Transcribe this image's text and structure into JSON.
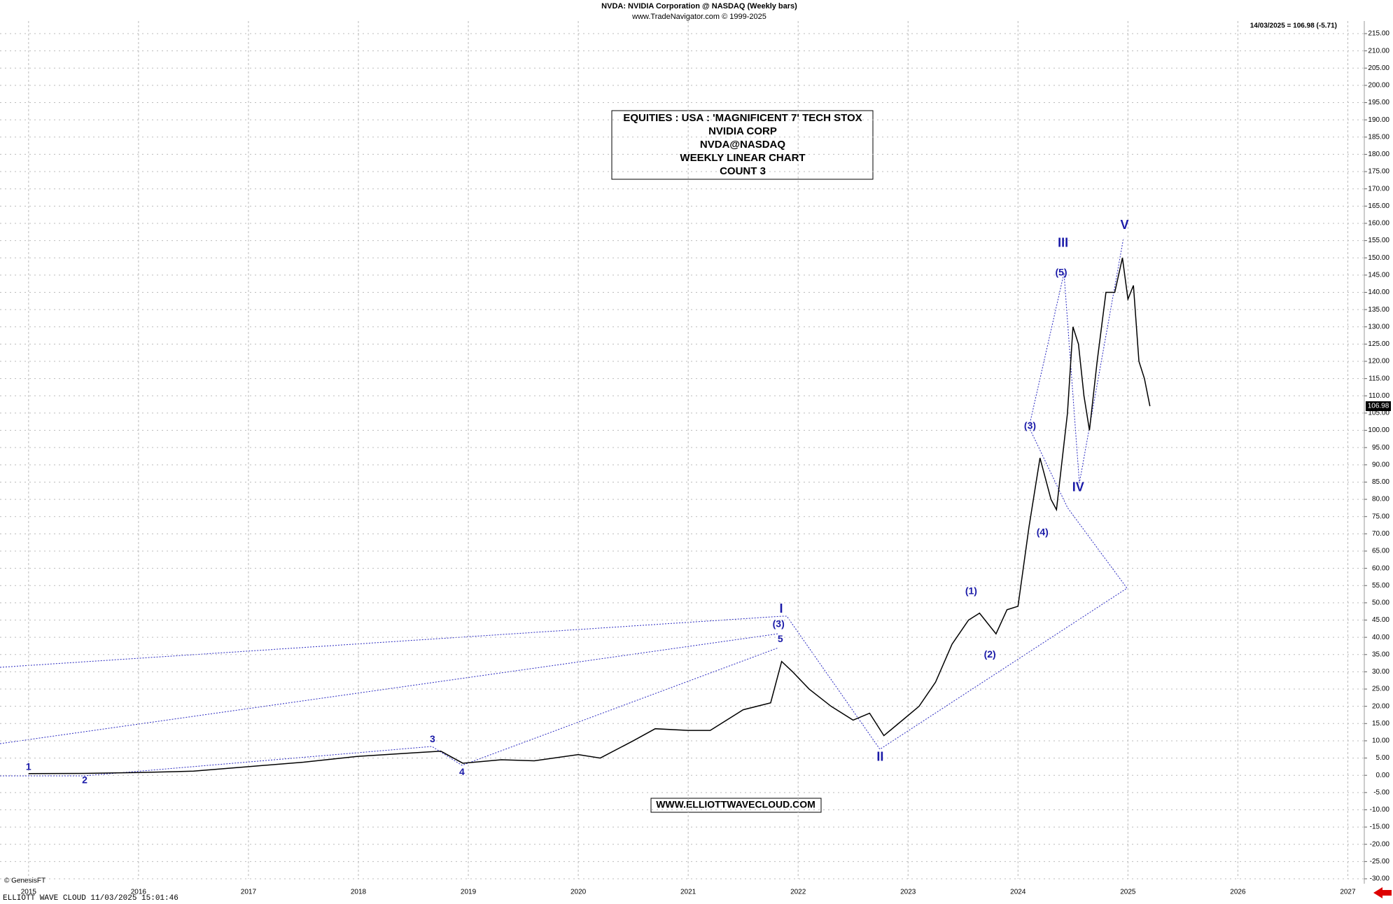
{
  "chart_data": {
    "type": "line",
    "title": "NVDA:  NVIDIA Corporation @ NASDAQ  (Weekly bars)",
    "subtitle": "www.TradeNavigator.com © 1999-2025",
    "last_quote": "14/03/2025 = 106.98 (-5.71)",
    "last_value_label": "106.98",
    "info_box": [
      "EQUITIES : USA : 'MAGNIFICENT 7' TECH STOX",
      "NVIDIA CORP",
      "NVDA@NASDAQ",
      "WEEKLY LINEAR CHART",
      "COUNT 3"
    ],
    "website": "WWW.ELLIOTTWAVECLOUD.COM",
    "footer": "ELLIOTT WAVE CLOUD    11/03/2025 15:01:46",
    "copyright": "© GenesisFT",
    "wave_labels": [
      "1",
      "2",
      "3",
      "4",
      "5",
      "(3)",
      "I",
      "II",
      "(1)",
      "(2)",
      "(3)",
      "(4)",
      "(5)",
      "III",
      "IV",
      "V"
    ],
    "color": "#000000",
    "grid": true,
    "xlim": [
      2014.74,
      2027.15
    ],
    "xticks": [
      2015,
      2016,
      2017,
      2018,
      2019,
      2020,
      2021,
      2022,
      2023,
      2024,
      2025,
      2026,
      2027
    ],
    "ylim": [
      -30,
      215
    ],
    "yticks": [
      {
        "value": 215,
        "label": "215.00"
      },
      {
        "value": 210,
        "label": "210.00"
      },
      {
        "value": 205,
        "label": "205.00"
      },
      {
        "value": 200,
        "label": "200.00"
      },
      {
        "value": 195,
        "label": "195.00"
      },
      {
        "value": 190,
        "label": "190.00"
      },
      {
        "value": 185,
        "label": "185.00"
      },
      {
        "value": 180,
        "label": "180.00"
      },
      {
        "value": 175,
        "label": "175.00"
      },
      {
        "value": 170,
        "label": "170.00"
      },
      {
        "value": 165,
        "label": "165.00"
      },
      {
        "value": 160,
        "label": "160.00"
      },
      {
        "value": 155,
        "label": "155.00"
      },
      {
        "value": 150,
        "label": "150.00"
      },
      {
        "value": 145,
        "label": "145.00"
      },
      {
        "value": 140,
        "label": "140.00"
      },
      {
        "value": 135,
        "label": "135.00"
      },
      {
        "value": 130,
        "label": "130.00"
      },
      {
        "value": 125,
        "label": "125.00"
      },
      {
        "value": 120,
        "label": "120.00"
      },
      {
        "value": 115,
        "label": "115.00"
      },
      {
        "value": 110,
        "label": "110.00"
      },
      {
        "value": 105,
        "label": "105.00"
      },
      {
        "value": 100,
        "label": "100.00"
      },
      {
        "value": 95,
        "label": "95.00"
      },
      {
        "value": 90,
        "label": "90.00"
      },
      {
        "value": 85,
        "label": "85.00"
      },
      {
        "value": 80,
        "label": "80.00"
      },
      {
        "value": 75,
        "label": "75.00"
      },
      {
        "value": 70,
        "label": "70.00"
      },
      {
        "value": 65,
        "label": "65.00"
      },
      {
        "value": 60,
        "label": "60.00"
      },
      {
        "value": 55,
        "label": "55.00"
      },
      {
        "value": 50,
        "label": "50.00"
      },
      {
        "value": 45,
        "label": "45.00"
      },
      {
        "value": 40,
        "label": "40.00"
      },
      {
        "value": 35,
        "label": "35.00"
      },
      {
        "value": 30,
        "label": "30.00"
      },
      {
        "value": 25,
        "label": "25.00"
      },
      {
        "value": 20,
        "label": "20.00"
      },
      {
        "value": 15,
        "label": "15.00"
      },
      {
        "value": 10,
        "label": "10.00"
      },
      {
        "value": 5,
        "label": "5.00"
      },
      {
        "value": 0,
        "label": "0.00"
      },
      {
        "value": -5,
        "label": "-5.00"
      },
      {
        "value": -10,
        "label": "-10.00"
      },
      {
        "value": -15,
        "label": "-15.00"
      },
      {
        "value": -20,
        "label": "-20.00"
      },
      {
        "value": -25,
        "label": "-25.00"
      },
      {
        "value": -30,
        "label": "-30.00"
      }
    ],
    "x": [
      2015.0,
      2015.5,
      2016.0,
      2016.5,
      2017.0,
      2017.5,
      2018.0,
      2018.5,
      2018.75,
      2018.95,
      2019.3,
      2019.6,
      2020.0,
      2020.2,
      2020.5,
      2020.7,
      2021.0,
      2021.2,
      2021.5,
      2021.75,
      2021.85,
      2021.95,
      2022.1,
      2022.3,
      2022.5,
      2022.65,
      2022.78,
      2022.95,
      2023.1,
      2023.25,
      2023.4,
      2023.55,
      2023.65,
      2023.8,
      2023.9,
      2024.0,
      2024.1,
      2024.2,
      2024.3,
      2024.35,
      2024.45,
      2024.5,
      2024.55,
      2024.6,
      2024.65,
      2024.72,
      2024.8,
      2024.88,
      2024.95,
      2025.0,
      2025.05,
      2025.1,
      2025.15,
      2025.2
    ],
    "values": [
      0.5,
      0.55,
      0.8,
      1.2,
      2.5,
      3.8,
      5.5,
      6.5,
      7.0,
      3.5,
      4.5,
      4.2,
      6,
      5.0,
      10,
      13.5,
      13,
      13,
      19,
      21,
      33,
      30,
      25,
      20,
      16,
      18,
      11.5,
      16,
      20,
      27,
      38,
      45,
      47,
      41,
      48,
      49,
      72,
      92,
      80,
      77,
      105,
      130,
      125,
      110,
      100,
      120,
      140,
      140,
      150,
      138,
      142,
      120,
      115,
      107
    ]
  }
}
